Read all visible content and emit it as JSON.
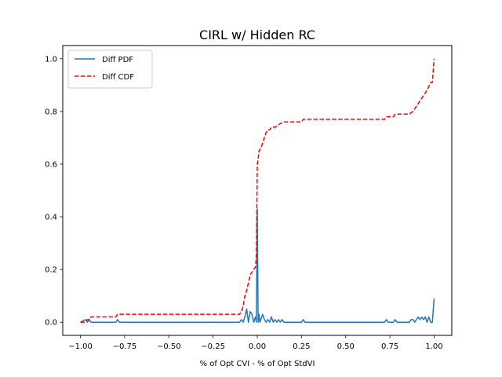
{
  "chart_data": {
    "type": "line",
    "title": "CIRL w/ Hidden RC",
    "xlabel": "% of Opt CVI - % of Opt StdVI",
    "ylabel": "",
    "xlim": [
      -1.1,
      1.1
    ],
    "ylim": [
      -0.05,
      1.05
    ],
    "xticks": [
      -1.0,
      -0.75,
      -0.5,
      -0.25,
      0.0,
      0.25,
      0.5,
      0.75,
      1.0
    ],
    "xtick_labels": [
      "−1.00",
      "−0.75",
      "−0.50",
      "−0.25",
      "0.00",
      "0.25",
      "0.50",
      "0.75",
      "1.00"
    ],
    "yticks": [
      0.0,
      0.2,
      0.4,
      0.6,
      0.8,
      1.0
    ],
    "ytick_labels": [
      "0.0",
      "0.2",
      "0.4",
      "0.6",
      "0.8",
      "1.0"
    ],
    "grid": false,
    "legend": "top-left",
    "series": [
      {
        "name": "Diff PDF",
        "color": "#1f77b4",
        "style": "solid",
        "x": [
          -1.0,
          -0.97,
          -0.96,
          -0.95,
          -0.94,
          -0.93,
          -0.8,
          -0.79,
          -0.78,
          -0.1,
          -0.09,
          -0.08,
          -0.07,
          -0.06,
          -0.05,
          -0.04,
          -0.03,
          -0.02,
          -0.01,
          -0.005,
          0.0,
          0.005,
          0.01,
          0.015,
          0.02,
          0.03,
          0.04,
          0.05,
          0.06,
          0.07,
          0.08,
          0.09,
          0.1,
          0.11,
          0.12,
          0.13,
          0.14,
          0.15,
          0.16,
          0.25,
          0.26,
          0.27,
          0.72,
          0.73,
          0.74,
          0.77,
          0.78,
          0.79,
          0.86,
          0.87,
          0.88,
          0.89,
          0.9,
          0.91,
          0.92,
          0.93,
          0.94,
          0.95,
          0.96,
          0.97,
          0.98,
          0.99,
          1.0
        ],
        "values": [
          0.0,
          0.01,
          0.0,
          0.01,
          0.0,
          0.0,
          0.0,
          0.01,
          0.0,
          0.0,
          0.01,
          0.0,
          0.02,
          0.05,
          0.0,
          0.04,
          0.03,
          0.0,
          0.02,
          0.0,
          0.43,
          0.0,
          0.03,
          0.0,
          0.01,
          0.03,
          0.01,
          0.0,
          0.01,
          0.0,
          0.02,
          0.0,
          0.01,
          0.0,
          0.01,
          0.0,
          0.01,
          0.0,
          0.0,
          0.0,
          0.01,
          0.0,
          0.0,
          0.01,
          0.0,
          0.0,
          0.01,
          0.0,
          0.0,
          0.01,
          0.01,
          0.0,
          0.01,
          0.02,
          0.01,
          0.02,
          0.01,
          0.02,
          0.0,
          0.02,
          0.0,
          0.0,
          0.09
        ]
      },
      {
        "name": "Diff CDF",
        "color": "#ff0000",
        "style": "dashed",
        "x": [
          -1.0,
          -0.97,
          -0.96,
          -0.95,
          -0.94,
          -0.8,
          -0.79,
          -0.1,
          -0.09,
          -0.08,
          -0.07,
          -0.06,
          -0.05,
          -0.04,
          -0.03,
          -0.02,
          -0.01,
          -0.005,
          0.0,
          0.005,
          0.01,
          0.02,
          0.03,
          0.04,
          0.05,
          0.06,
          0.07,
          0.08,
          0.1,
          0.12,
          0.15,
          0.2,
          0.25,
          0.26,
          0.5,
          0.72,
          0.73,
          0.77,
          0.78,
          0.86,
          0.88,
          0.9,
          0.92,
          0.94,
          0.96,
          0.98,
          0.99,
          1.0
        ],
        "values": [
          0.0,
          0.0,
          0.01,
          0.01,
          0.02,
          0.02,
          0.03,
          0.03,
          0.04,
          0.06,
          0.1,
          0.12,
          0.15,
          0.18,
          0.19,
          0.2,
          0.21,
          0.25,
          0.6,
          0.62,
          0.65,
          0.66,
          0.68,
          0.7,
          0.72,
          0.73,
          0.73,
          0.74,
          0.74,
          0.75,
          0.76,
          0.76,
          0.76,
          0.77,
          0.77,
          0.77,
          0.78,
          0.78,
          0.79,
          0.79,
          0.8,
          0.82,
          0.84,
          0.86,
          0.88,
          0.91,
          0.91,
          1.0
        ]
      }
    ]
  }
}
